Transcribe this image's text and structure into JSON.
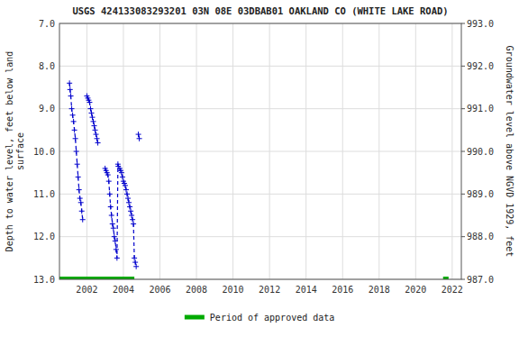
{
  "chart_data": {
    "type": "line",
    "title": "USGS 424133083293201 03N 08E 03DBAB01 OAKLAND CO (WHITE LAKE ROAD)",
    "y_label": "Depth to water level, feet below land\nsurface",
    "y2_label": "Groundwater level above NGVD 1929, feet",
    "xlim": [
      2000.5,
      2022.5
    ],
    "xticks": [
      2002,
      2004,
      2006,
      2008,
      2010,
      2012,
      2014,
      2016,
      2018,
      2020,
      2022
    ],
    "ylim": [
      13.0,
      7.0
    ],
    "yticks": [
      {
        "value": 7.0,
        "label": "7.0"
      },
      {
        "value": 8.0,
        "label": "8.0"
      },
      {
        "value": 9.0,
        "label": "9.0"
      },
      {
        "value": 10.0,
        "label": "10.0"
      },
      {
        "value": 11.0,
        "label": "11.0"
      },
      {
        "value": 12.0,
        "label": "12.0"
      },
      {
        "value": 13.0,
        "label": "13.0"
      }
    ],
    "y2lim": [
      987.0,
      993.0
    ],
    "y2ticks": [
      {
        "value": 993.0,
        "label": "993.0"
      },
      {
        "value": 992.0,
        "label": "992.0"
      },
      {
        "value": 991.0,
        "label": "991.0"
      },
      {
        "value": 990.0,
        "label": "990.0"
      },
      {
        "value": 989.0,
        "label": "989.0"
      },
      {
        "value": 988.0,
        "label": "988.0"
      },
      {
        "value": 987.0,
        "label": "987.0"
      }
    ],
    "grid": true,
    "legend": "bottom",
    "series": [
      {
        "name": "Period of approved data",
        "type": "bar",
        "orientation": "horizontal",
        "color": "#00aa00",
        "values": [
          13.0,
          13.0
        ],
        "ranges": [
          [
            2000.5,
            2004.6
          ],
          [
            2021.5,
            2021.8
          ]
        ]
      },
      {
        "color": "#0000cc",
        "line_style": "dashed",
        "marker": "plus",
        "x": [
          2001.05,
          2001.08,
          2001.12,
          2001.17,
          2001.22,
          2001.27,
          2001.32,
          2001.37,
          2001.42,
          2001.47,
          2001.52,
          2001.57,
          2001.62,
          2001.67,
          2001.72,
          2001.77
        ],
        "values": [
          8.4,
          8.55,
          8.7,
          9.0,
          9.15,
          9.3,
          9.5,
          9.7,
          10.0,
          10.3,
          10.6,
          10.9,
          11.1,
          11.2,
          11.4,
          11.6
        ]
      },
      {
        "color": "#0000cc",
        "line_style": "dashed",
        "marker": "plus",
        "x": [
          2002.0,
          2002.05,
          2002.1,
          2002.15,
          2002.2,
          2002.25,
          2002.3,
          2002.35,
          2002.4,
          2002.45,
          2002.5,
          2002.55,
          2002.6
        ],
        "values": [
          8.7,
          8.75,
          8.8,
          8.85,
          9.0,
          9.1,
          9.2,
          9.3,
          9.4,
          9.5,
          9.6,
          9.7,
          9.8
        ]
      },
      {
        "color": "#0000cc",
        "line_style": "dashed",
        "marker": "plus",
        "x": [
          2003.0,
          2003.05,
          2003.1,
          2003.15,
          2003.2,
          2003.25,
          2003.3,
          2003.35,
          2003.4,
          2003.45,
          2003.5,
          2003.55,
          2003.6,
          2003.65,
          2003.7,
          2003.72
        ],
        "values": [
          10.4,
          10.45,
          10.5,
          10.55,
          10.7,
          11.0,
          11.3,
          11.5,
          11.7,
          11.8,
          12.0,
          12.1,
          12.3,
          12.5,
          10.3,
          10.35
        ]
      },
      {
        "color": "#0000cc",
        "line_style": "dashed",
        "marker": "plus",
        "x": [
          2003.8,
          2003.85,
          2003.9,
          2003.95,
          2004.0,
          2004.05,
          2004.1,
          2004.15,
          2004.2,
          2004.25,
          2004.3,
          2004.35,
          2004.4,
          2004.45,
          2004.5,
          2004.55,
          2004.6,
          2004.65,
          2004.7
        ],
        "values": [
          10.4,
          10.45,
          10.5,
          10.6,
          10.7,
          10.75,
          10.8,
          10.9,
          11.0,
          11.1,
          11.2,
          11.3,
          11.4,
          11.5,
          11.6,
          11.7,
          12.5,
          12.6,
          12.7
        ]
      },
      {
        "color": "#0000cc",
        "line_style": "dashed",
        "marker": "plus",
        "x": [
          2004.82,
          2004.87
        ],
        "values": [
          9.6,
          9.7
        ]
      }
    ]
  }
}
